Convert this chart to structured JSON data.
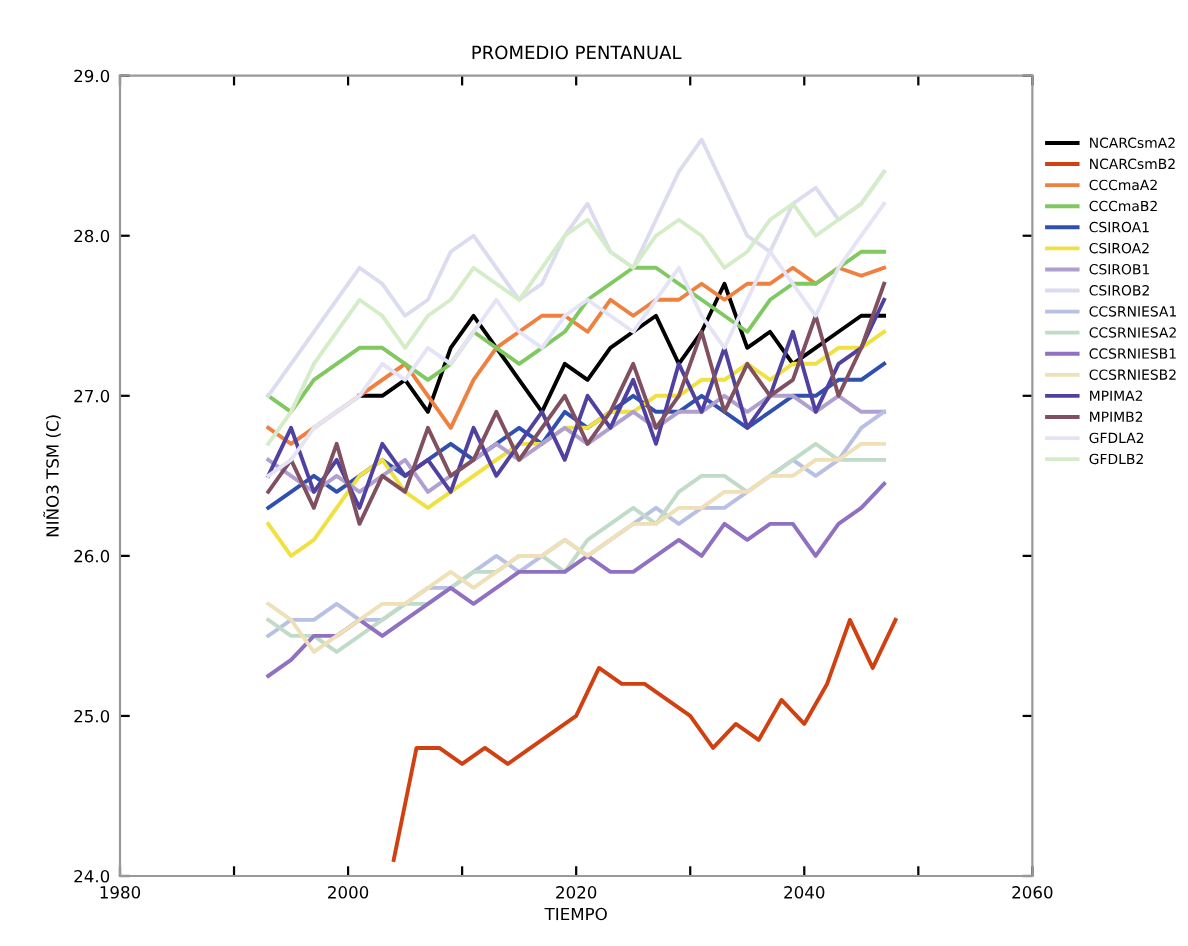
{
  "chart_data": {
    "type": "line",
    "title": "PROMEDIO PENTANUAL",
    "xlabel": "TIEMPO",
    "ylabel": "NIÑO3 TSM (C)",
    "x": [
      1993,
      1995,
      1997,
      1999,
      2001,
      2003,
      2005,
      2007,
      2009,
      2011,
      2013,
      2015,
      2017,
      2019,
      2021,
      2023,
      2025,
      2027,
      2029,
      2031,
      2033,
      2035,
      2037,
      2039,
      2041,
      2043,
      2045,
      2047
    ],
    "xlim": [
      1980,
      2060
    ],
    "xticks": [
      1980,
      {
        "value": 1990,
        "label": null
      },
      2000,
      {
        "value": 2010,
        "label": null
      },
      2020,
      {
        "value": 2030,
        "label": null
      },
      2040,
      {
        "value": 2050,
        "label": null
      },
      2060
    ],
    "ylim": [
      24.0,
      29.0
    ],
    "yticks": [
      {
        "value": 24,
        "label": "24.0"
      },
      {
        "value": 25,
        "label": "25.0"
      },
      {
        "value": 26,
        "label": "26.0"
      },
      {
        "value": 27,
        "label": "27.0"
      },
      {
        "value": 28,
        "label": "28.0"
      },
      {
        "value": 29,
        "label": "29.0"
      }
    ],
    "grid": false,
    "legend": "right",
    "line_style": "solid",
    "marker": "none",
    "series": [
      {
        "name": "NCARCsmA2",
        "color": "#000000",
        "values": [
          null,
          null,
          null,
          null,
          27.0,
          27.0,
          27.1,
          26.9,
          27.3,
          27.5,
          27.3,
          27.1,
          26.9,
          27.2,
          27.1,
          27.3,
          27.4,
          27.5,
          27.2,
          27.4,
          27.7,
          27.3,
          27.4,
          27.2,
          27.3,
          27.4,
          27.5,
          27.5
        ]
      },
      {
        "name": "NCARCsmB2",
        "color": "#d04010",
        "x": [
          2004,
          2006,
          2008,
          2010,
          2012,
          2014,
          2016,
          2018,
          2020,
          2022,
          2024,
          2026,
          2028,
          2030,
          2032,
          2034,
          2036,
          2038,
          2040,
          2042,
          2044,
          2046,
          2048
        ],
        "values": [
          24.1,
          24.8,
          24.8,
          24.7,
          24.8,
          24.7,
          24.8,
          24.9,
          25.0,
          25.3,
          25.2,
          25.2,
          25.1,
          25.0,
          24.8,
          24.95,
          24.85,
          25.1,
          24.95,
          25.2,
          25.6,
          25.3,
          25.6
        ]
      },
      {
        "name": "CCCmaA2",
        "color": "#f08040",
        "values": [
          26.8,
          26.7,
          26.8,
          26.9,
          27.0,
          27.1,
          27.2,
          27.0,
          26.8,
          27.1,
          27.3,
          27.4,
          27.5,
          27.5,
          27.4,
          27.6,
          27.5,
          27.6,
          27.6,
          27.7,
          27.6,
          27.7,
          27.7,
          27.8,
          27.7,
          27.8,
          27.75,
          27.8
        ]
      },
      {
        "name": "CCCmaB2",
        "color": "#80c860",
        "values": [
          27.0,
          26.9,
          27.1,
          27.2,
          27.3,
          27.3,
          27.2,
          27.1,
          27.2,
          27.4,
          27.3,
          27.2,
          27.3,
          27.4,
          27.6,
          27.7,
          27.8,
          27.8,
          27.7,
          27.6,
          27.5,
          27.4,
          27.6,
          27.7,
          27.7,
          27.8,
          27.9,
          27.9
        ]
      },
      {
        "name": "CSIROA1",
        "color": "#3050b0",
        "values": [
          26.3,
          26.4,
          26.5,
          26.4,
          26.5,
          26.6,
          26.5,
          26.6,
          26.7,
          26.6,
          26.7,
          26.8,
          26.7,
          26.9,
          26.8,
          26.9,
          27.0,
          26.9,
          26.9,
          27.0,
          26.9,
          26.8,
          26.9,
          27.0,
          27.0,
          27.1,
          27.1,
          27.2
        ]
      },
      {
        "name": "CSIROA2",
        "color": "#f0e040",
        "values": [
          26.2,
          26.0,
          26.1,
          26.3,
          26.5,
          26.6,
          26.4,
          26.3,
          26.4,
          26.5,
          26.6,
          26.7,
          26.7,
          26.8,
          26.8,
          26.9,
          26.9,
          27.0,
          27.0,
          27.1,
          27.1,
          27.2,
          27.1,
          27.2,
          27.2,
          27.3,
          27.3,
          27.4
        ]
      },
      {
        "name": "CSIROB1",
        "color": "#b0a0d0",
        "values": [
          26.6,
          26.5,
          26.4,
          26.5,
          26.4,
          26.5,
          26.6,
          26.4,
          26.5,
          26.6,
          26.7,
          26.6,
          26.7,
          26.8,
          26.7,
          26.8,
          26.9,
          26.8,
          26.9,
          26.9,
          27.0,
          26.9,
          27.0,
          27.0,
          26.9,
          27.0,
          26.9,
          26.9
        ]
      },
      {
        "name": "CSIROB2",
        "color": "#dcdcf0",
        "values": [
          27.0,
          27.2,
          27.4,
          27.6,
          27.8,
          27.7,
          27.5,
          27.6,
          27.9,
          28.0,
          27.8,
          27.6,
          27.7,
          28.0,
          28.2,
          27.9,
          27.8,
          28.1,
          28.4,
          28.6,
          28.3,
          28.0,
          27.9,
          28.2,
          28.3,
          28.1,
          28.2,
          28.4
        ]
      },
      {
        "name": "CCSRNIESA1",
        "color": "#b8c0e4",
        "values": [
          25.5,
          25.6,
          25.6,
          25.7,
          25.6,
          25.6,
          25.7,
          25.8,
          25.8,
          25.9,
          26.0,
          25.9,
          26.0,
          26.1,
          26.0,
          26.1,
          26.2,
          26.3,
          26.2,
          26.3,
          26.3,
          26.4,
          26.5,
          26.6,
          26.5,
          26.6,
          26.8,
          26.9
        ]
      },
      {
        "name": "CCSRNIESA2",
        "color": "#c0dcc8",
        "values": [
          25.6,
          25.5,
          25.5,
          25.4,
          25.5,
          25.6,
          25.7,
          25.7,
          25.8,
          25.9,
          25.9,
          26.0,
          26.0,
          25.9,
          26.1,
          26.2,
          26.3,
          26.2,
          26.4,
          26.5,
          26.5,
          26.4,
          26.5,
          26.6,
          26.7,
          26.6,
          26.6,
          26.6
        ]
      },
      {
        "name": "CCSRNIESB1",
        "color": "#9070c0",
        "values": [
          25.25,
          25.35,
          25.5,
          25.5,
          25.6,
          25.5,
          25.6,
          25.7,
          25.8,
          25.7,
          25.8,
          25.9,
          25.9,
          25.9,
          26.0,
          25.9,
          25.9,
          26.0,
          26.1,
          26.0,
          26.2,
          26.1,
          26.2,
          26.2,
          26.0,
          26.2,
          26.3,
          26.45
        ]
      },
      {
        "name": "CCSRNIESB2",
        "color": "#f0e0b8",
        "values": [
          25.7,
          25.6,
          25.4,
          25.5,
          25.6,
          25.7,
          25.7,
          25.8,
          25.9,
          25.8,
          25.9,
          26.0,
          26.0,
          26.1,
          26.0,
          26.1,
          26.2,
          26.2,
          26.3,
          26.3,
          26.4,
          26.4,
          26.5,
          26.5,
          26.6,
          26.6,
          26.7,
          26.7
        ]
      },
      {
        "name": "MPIMA2",
        "color": "#5040a0",
        "values": [
          26.5,
          26.8,
          26.4,
          26.6,
          26.3,
          26.7,
          26.5,
          26.6,
          26.4,
          26.8,
          26.5,
          26.7,
          26.9,
          26.6,
          27.0,
          26.8,
          27.1,
          26.7,
          27.2,
          26.9,
          27.3,
          26.8,
          27.0,
          27.4,
          26.9,
          27.2,
          27.3,
          27.6
        ]
      },
      {
        "name": "MPIMB2",
        "color": "#805060",
        "values": [
          26.4,
          26.6,
          26.3,
          26.7,
          26.2,
          26.5,
          26.4,
          26.8,
          26.5,
          26.6,
          26.9,
          26.6,
          26.8,
          27.0,
          26.7,
          26.9,
          27.2,
          26.8,
          27.0,
          27.4,
          26.9,
          27.2,
          27.0,
          27.1,
          27.5,
          27.0,
          27.3,
          27.7
        ]
      },
      {
        "name": "GFDLA2",
        "color": "#e4e4f6",
        "values": [
          26.5,
          26.6,
          26.8,
          26.9,
          27.0,
          27.2,
          27.1,
          27.3,
          27.2,
          27.4,
          27.6,
          27.4,
          27.3,
          27.5,
          27.6,
          27.5,
          27.4,
          27.6,
          27.8,
          27.5,
          27.3,
          27.6,
          27.9,
          27.7,
          27.5,
          27.8,
          28.0,
          28.2
        ]
      },
      {
        "name": "GFDLB2",
        "color": "#d4ecc8",
        "values": [
          26.7,
          26.9,
          27.2,
          27.4,
          27.6,
          27.5,
          27.3,
          27.5,
          27.6,
          27.8,
          27.7,
          27.6,
          27.8,
          28.0,
          28.1,
          27.9,
          27.8,
          28.0,
          28.1,
          28.0,
          27.8,
          27.9,
          28.1,
          28.2,
          28.0,
          28.1,
          28.2,
          28.4
        ]
      }
    ]
  }
}
